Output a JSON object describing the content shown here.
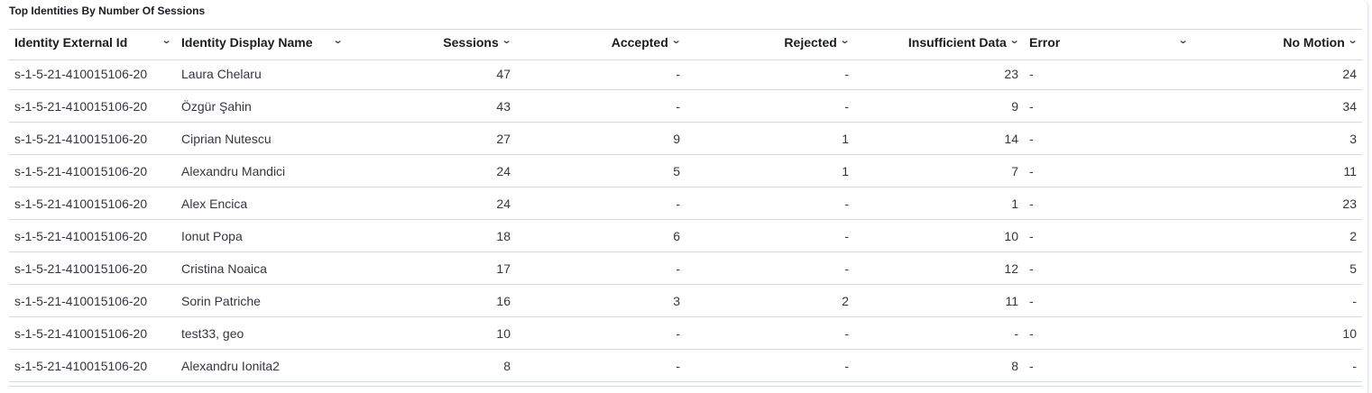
{
  "title": "Top Identities By Number Of Sessions",
  "columns": [
    {
      "label": "Identity External Id",
      "align": "left"
    },
    {
      "label": "Identity Display Name",
      "align": "left"
    },
    {
      "label": "Sessions",
      "align": "right"
    },
    {
      "label": "Accepted",
      "align": "right"
    },
    {
      "label": "Rejected",
      "align": "right"
    },
    {
      "label": "Insufficient Data",
      "align": "right"
    },
    {
      "label": "Error",
      "align": "left"
    },
    {
      "label": "No Motion",
      "align": "right"
    }
  ],
  "rows": [
    [
      "s-1-5-21-410015106-20",
      "Laura Chelaru",
      "47",
      "-",
      "-",
      "23",
      "-",
      "24"
    ],
    [
      "s-1-5-21-410015106-20",
      "Özgür Şahin",
      "43",
      "-",
      "-",
      "9",
      "-",
      "34"
    ],
    [
      "s-1-5-21-410015106-20",
      "Ciprian Nutescu",
      "27",
      "9",
      "1",
      "14",
      "-",
      "3"
    ],
    [
      "s-1-5-21-410015106-20",
      "Alexandru Mandici",
      "24",
      "5",
      "1",
      "7",
      "-",
      "11"
    ],
    [
      "s-1-5-21-410015106-20",
      "Alex Encica",
      "24",
      "-",
      "-",
      "1",
      "-",
      "23"
    ],
    [
      "s-1-5-21-410015106-20",
      "Ionut Popa",
      "18",
      "6",
      "-",
      "10",
      "-",
      "2"
    ],
    [
      "s-1-5-21-410015106-20",
      "Cristina Noaica",
      "17",
      "-",
      "-",
      "12",
      "-",
      "5"
    ],
    [
      "s-1-5-21-410015106-20",
      "Sorin Patriche",
      "16",
      "3",
      "2",
      "11",
      "-",
      "-"
    ],
    [
      "s-1-5-21-410015106-20",
      "test33, geo",
      "10",
      "-",
      "-",
      "-",
      "-",
      "10"
    ],
    [
      "s-1-5-21-410015106-20",
      "Alexandru Ionita2",
      "8",
      "-",
      "-",
      "8",
      "-",
      "-"
    ]
  ],
  "icons": {
    "sort": "chevron-down-icon"
  }
}
